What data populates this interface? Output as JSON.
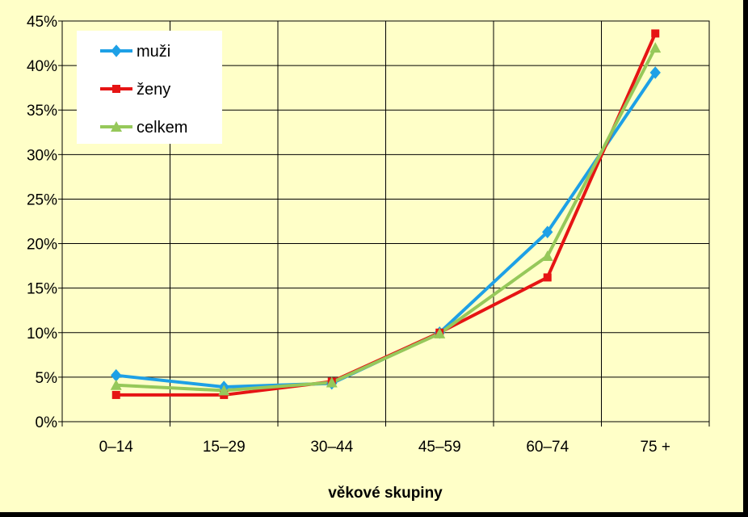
{
  "chart_data": {
    "type": "line",
    "categories": [
      "0–14",
      "15–29",
      "30–44",
      "45–59",
      "60–74",
      "75 +"
    ],
    "series": [
      {
        "name": "muži",
        "values": [
          5.2,
          3.9,
          4.3,
          10.0,
          21.3,
          39.2
        ],
        "color": "#1EA0E6",
        "marker": "diamond"
      },
      {
        "name": "ženy",
        "values": [
          3.0,
          3.0,
          4.5,
          10.0,
          16.2,
          43.6
        ],
        "color": "#E61414",
        "marker": "square"
      },
      {
        "name": "celkem",
        "values": [
          4.1,
          3.5,
          4.4,
          9.9,
          18.6,
          42.0
        ],
        "color": "#96C85A",
        "marker": "triangle"
      }
    ],
    "y_ticks": [
      "0%",
      "5%",
      "10%",
      "15%",
      "20%",
      "25%",
      "30%",
      "35%",
      "40%",
      "45%"
    ],
    "ylim": [
      0,
      45
    ],
    "xlabel": "věkové skupiny",
    "ylabel": "",
    "grid": true,
    "legend_position": "top-left"
  }
}
